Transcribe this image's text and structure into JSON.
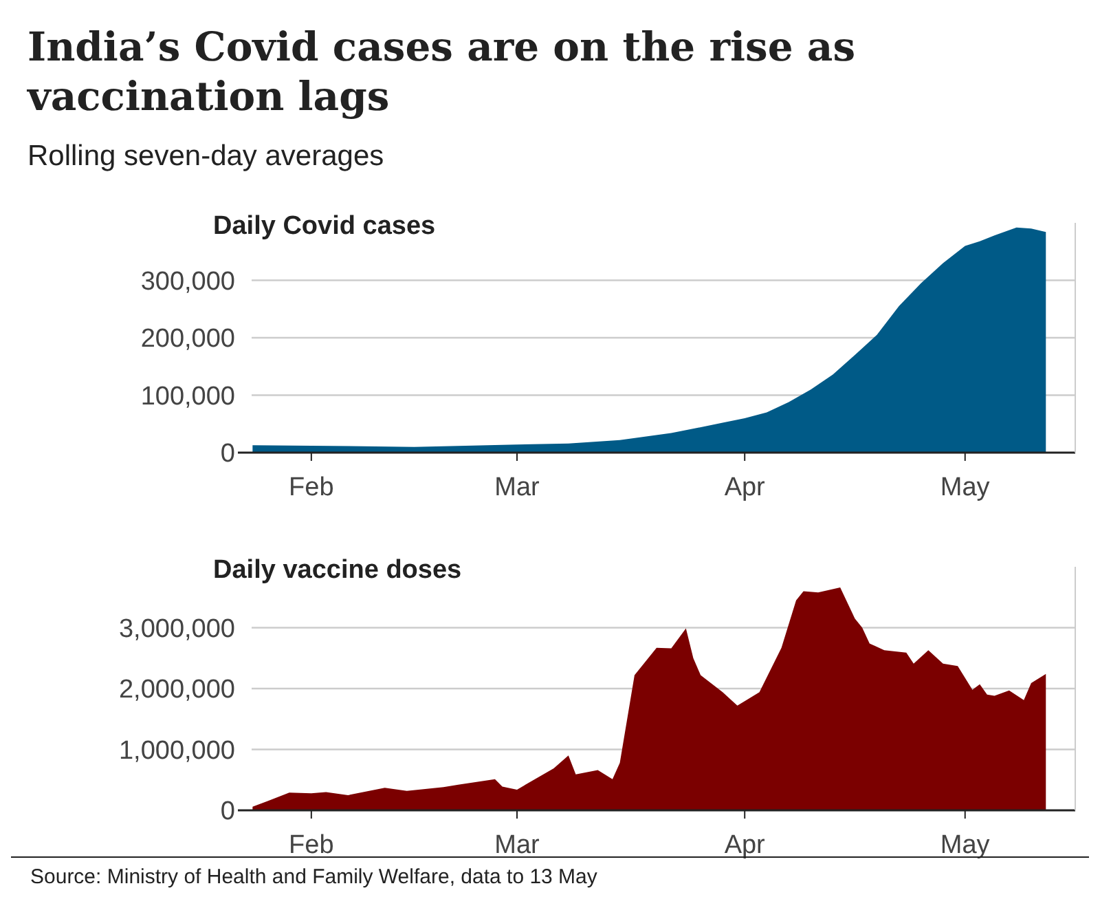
{
  "chart_data": [
    {
      "type": "other",
      "title": "India’s Covid cases are on the rise as vaccination lags",
      "subtitle": "Rolling seven-day averages"
    },
    {
      "type": "area",
      "title": "Daily Covid cases",
      "color": "#005a87",
      "grid": "y",
      "x": [
        "--01-24",
        "--02-01",
        "--02-15",
        "--03-01",
        "--03-08",
        "--03-15",
        "--03-22",
        "--03-29",
        "--04-01",
        "--04-04",
        "--04-07",
        "--04-10",
        "--04-13",
        "--04-16",
        "--04-19",
        "--04-22",
        "--04-25",
        "--04-28",
        "--05-01",
        "--05-03",
        "--05-05",
        "--05-08",
        "--05-10",
        "--05-12"
      ],
      "values": [
        13000,
        12000,
        10000,
        14000,
        16000,
        22000,
        34000,
        52000,
        60000,
        70000,
        88000,
        110000,
        136000,
        170000,
        205000,
        255000,
        295000,
        330000,
        360000,
        368000,
        378000,
        392000,
        390000,
        384000
      ],
      "xlim": [
        "--01-22",
        "--05-16"
      ],
      "xticks": [
        {
          "value": "--02-01",
          "label": "Feb"
        },
        {
          "value": "--03-01",
          "label": "Mar"
        },
        {
          "value": "--04-01",
          "label": "Apr"
        },
        {
          "value": "--05-01",
          "label": "May"
        }
      ],
      "ylim": [
        0,
        400000
      ],
      "yticks": [
        0,
        {
          "value": 100000,
          "label": "100,000"
        },
        {
          "value": 200000,
          "label": "200,000"
        },
        {
          "value": 300000,
          "label": "300,000"
        }
      ]
    },
    {
      "type": "area",
      "title": "Daily vaccine doses",
      "color": "#7b0000",
      "grid": "y",
      "x": [
        "--01-24",
        "--01-26",
        "--01-29",
        "--02-01",
        "--02-03",
        "--02-06",
        "--02-11",
        "--02-14",
        "--02-19",
        "--02-21",
        "--02-26",
        "--02-27",
        "--03-01",
        "--03-06",
        "--03-08",
        "--03-09",
        "--03-12",
        "--03-14",
        "--03-15",
        "--03-17",
        "--03-20",
        "--03-22",
        "--03-24",
        "--03-25",
        "--03-26",
        "--03-29",
        "--03-31",
        "--04-03",
        "--04-06",
        "--04-08",
        "--04-09",
        "--04-11",
        "--04-14",
        "--04-16",
        "--04-17",
        "--04-18",
        "--04-20",
        "--04-23",
        "--04-24",
        "--04-26",
        "--04-28",
        "--04-30",
        "--05-02",
        "--05-03",
        "--05-04",
        "--05-05",
        "--05-07",
        "--05-09",
        "--05-10",
        "--05-12"
      ],
      "values": [
        60000,
        150000,
        290000,
        280000,
        300000,
        250000,
        370000,
        320000,
        380000,
        420000,
        510000,
        390000,
        340000,
        690000,
        900000,
        590000,
        660000,
        510000,
        780000,
        2220000,
        2670000,
        2660000,
        2990000,
        2500000,
        2220000,
        1940000,
        1720000,
        1940000,
        2670000,
        3450000,
        3600000,
        3580000,
        3660000,
        3150000,
        3000000,
        2740000,
        2630000,
        2590000,
        2410000,
        2630000,
        2410000,
        2370000,
        1980000,
        2070000,
        1900000,
        1880000,
        1970000,
        1810000,
        2090000,
        2240000
      ],
      "xlim": [
        "--01-22",
        "--05-16"
      ],
      "xticks": [
        {
          "value": "--02-01",
          "label": "Feb"
        },
        {
          "value": "--03-01",
          "label": "Mar"
        },
        {
          "value": "--04-01",
          "label": "Apr"
        },
        {
          "value": "--05-01",
          "label": "May"
        }
      ],
      "ylim": [
        0,
        4000000
      ],
      "yticks": [
        0,
        {
          "value": 1000000,
          "label": "1,000,000"
        },
        {
          "value": 2000000,
          "label": "2,000,000"
        },
        {
          "value": 3000000,
          "label": "3,000,000"
        }
      ],
      "annotations": [
        "Source: Ministry of Health and Family Welfare, data to 13 May"
      ]
    }
  ]
}
